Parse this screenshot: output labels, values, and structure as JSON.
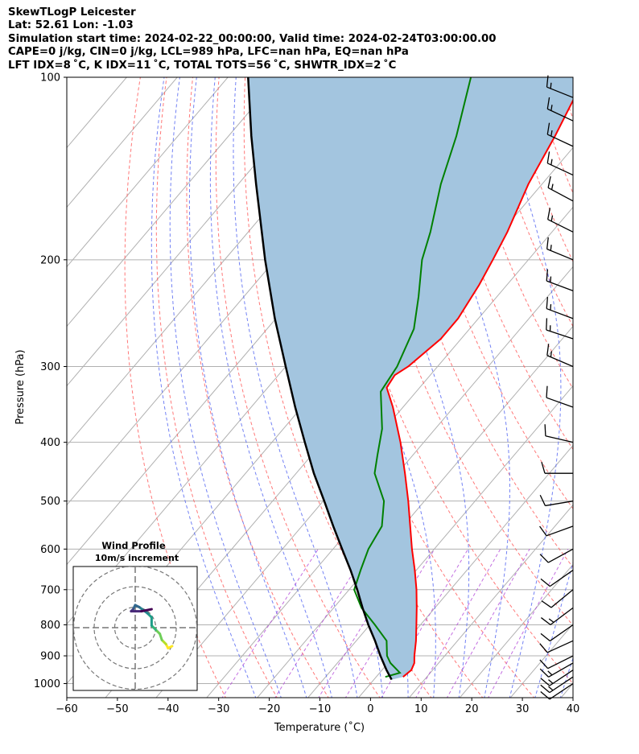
{
  "header": {
    "line1": "SkewTLogP Leicester",
    "line2": "Lat: 52.61   Lon: -1.03",
    "line3": "Simulation start time: 2024-02-22_00:00:00, Valid time: 2024-02-24T03:00:00.00",
    "line4": "CAPE=0 j/kg, CIN=0 j/kg, LCL=989 hPa, LFC=nan hPa, EQ=nan hPa",
    "line5": "LFT IDX=8 ˚C, K IDX=11 ˚C, TOTAL TOTS=56 ˚C, SHWTR_IDX=2 ˚C"
  },
  "colors": {
    "temperature": "#ff0000",
    "dewpoint": "#008000",
    "parcel": "#000000",
    "cape_fill": "#a3c5df",
    "dry_adiabat": "#ff6060",
    "moist_adiabat": "#5a6cf2",
    "mixing_ratio": "#b44bd9",
    "isotherm": "#b0b0b0",
    "grid": "#b0b0b0"
  },
  "chart_data": {
    "type": "skewt-logp",
    "xlabel": "Temperature (˚C)",
    "ylabel": "Pressure (hPa)",
    "xlim": [
      -60,
      40
    ],
    "ylim": [
      1050,
      100
    ],
    "x_ticks": [
      "−60",
      "−50",
      "−40",
      "−30",
      "−20",
      "−10",
      "0",
      "10",
      "20",
      "30",
      "40"
    ],
    "x_tick_values": [
      -60,
      -50,
      -40,
      -30,
      -20,
      -10,
      0,
      10,
      20,
      30,
      40
    ],
    "y_ticks": [
      "1000",
      "900",
      "800",
      "700",
      "600",
      "500",
      "400",
      "300",
      "200",
      "100"
    ],
    "y_tick_values": [
      1000,
      900,
      800,
      700,
      600,
      500,
      400,
      300,
      200,
      100
    ],
    "grid": true,
    "temperature_profile": [
      {
        "p": 975,
        "t": 5.3
      },
      {
        "p": 950,
        "t": 5.8
      },
      {
        "p": 925,
        "t": 5.2
      },
      {
        "p": 900,
        "t": 4.0
      },
      {
        "p": 850,
        "t": 1.8
      },
      {
        "p": 800,
        "t": -0.8
      },
      {
        "p": 750,
        "t": -3.6
      },
      {
        "p": 700,
        "t": -6.7
      },
      {
        "p": 650,
        "t": -10.3
      },
      {
        "p": 600,
        "t": -14.4
      },
      {
        "p": 550,
        "t": -18.6
      },
      {
        "p": 500,
        "t": -23.2
      },
      {
        "p": 450,
        "t": -28.5
      },
      {
        "p": 400,
        "t": -34.6
      },
      {
        "p": 350,
        "t": -42.0
      },
      {
        "p": 325,
        "t": -46.5
      },
      {
        "p": 310,
        "t": -47.0
      },
      {
        "p": 300,
        "t": -45.8
      },
      {
        "p": 270,
        "t": -44.0
      },
      {
        "p": 250,
        "t": -44.0
      },
      {
        "p": 220,
        "t": -45.5
      },
      {
        "p": 200,
        "t": -47.0
      },
      {
        "p": 180,
        "t": -48.8
      },
      {
        "p": 150,
        "t": -52.7
      },
      {
        "p": 125,
        "t": -55.5
      },
      {
        "p": 100,
        "t": -59.5
      }
    ],
    "dewpoint_profile": [
      {
        "p": 975,
        "t": 1.8
      },
      {
        "p": 960,
        "t": 4.0
      },
      {
        "p": 925,
        "t": 0.5
      },
      {
        "p": 900,
        "t": -1.4
      },
      {
        "p": 850,
        "t": -4.0
      },
      {
        "p": 800,
        "t": -9.0
      },
      {
        "p": 750,
        "t": -14.5
      },
      {
        "p": 700,
        "t": -19.0
      },
      {
        "p": 650,
        "t": -21.0
      },
      {
        "p": 600,
        "t": -23.0
      },
      {
        "p": 550,
        "t": -24.2
      },
      {
        "p": 500,
        "t": -28.0
      },
      {
        "p": 450,
        "t": -34.5
      },
      {
        "p": 420,
        "t": -37.0
      },
      {
        "p": 380,
        "t": -40.5
      },
      {
        "p": 330,
        "t": -47.0
      },
      {
        "p": 300,
        "t": -48.0
      },
      {
        "p": 260,
        "t": -51.0
      },
      {
        "p": 230,
        "t": -55.5
      },
      {
        "p": 200,
        "t": -61.0
      },
      {
        "p": 180,
        "t": -64.0
      },
      {
        "p": 150,
        "t": -70.0
      },
      {
        "p": 125,
        "t": -75.0
      },
      {
        "p": 100,
        "t": -82.0
      }
    ],
    "parcel_profile": [
      {
        "p": 985,
        "t": 3.5
      },
      {
        "p": 950,
        "t": 0.9
      },
      {
        "p": 900,
        "t": -2.7
      },
      {
        "p": 850,
        "t": -6.3
      },
      {
        "p": 800,
        "t": -10.3
      },
      {
        "p": 750,
        "t": -14.3
      },
      {
        "p": 700,
        "t": -18.4
      },
      {
        "p": 650,
        "t": -23.0
      },
      {
        "p": 600,
        "t": -28.2
      },
      {
        "p": 550,
        "t": -33.8
      },
      {
        "p": 500,
        "t": -39.8
      },
      {
        "p": 450,
        "t": -46.5
      },
      {
        "p": 400,
        "t": -53.5
      },
      {
        "p": 350,
        "t": -61.3
      },
      {
        "p": 300,
        "t": -70.0
      },
      {
        "p": 250,
        "t": -80.2
      },
      {
        "p": 200,
        "t": -92.0
      },
      {
        "p": 150,
        "t": -106.5
      },
      {
        "p": 125,
        "t": -115.5
      },
      {
        "p": 100,
        "t": -126.0
      }
    ],
    "wind_barbs": [
      {
        "p": 1000,
        "u": 12,
        "v": 8
      },
      {
        "p": 975,
        "u": 15,
        "v": 10
      },
      {
        "p": 950,
        "u": 15,
        "v": 10
      },
      {
        "p": 925,
        "u": 14,
        "v": 8
      },
      {
        "p": 900,
        "u": 12,
        "v": 6
      },
      {
        "p": 850,
        "u": 11,
        "v": 5
      },
      {
        "p": 800,
        "u": 10,
        "v": 7
      },
      {
        "p": 750,
        "u": 12,
        "v": 9
      },
      {
        "p": 700,
        "u": 11,
        "v": 9
      },
      {
        "p": 650,
        "u": 10,
        "v": 7
      },
      {
        "p": 600,
        "u": 11,
        "v": 6
      },
      {
        "p": 550,
        "u": 11,
        "v": 4
      },
      {
        "p": 500,
        "u": 12,
        "v": 2
      },
      {
        "p": 450,
        "u": 12,
        "v": 0
      },
      {
        "p": 400,
        "u": 13,
        "v": -3
      },
      {
        "p": 350,
        "u": 14,
        "v": -5
      },
      {
        "p": 300,
        "u": 14,
        "v": -6
      },
      {
        "p": 270,
        "u": 15,
        "v": -5
      },
      {
        "p": 250,
        "u": 16,
        "v": -6
      },
      {
        "p": 225,
        "u": 16,
        "v": -6
      },
      {
        "p": 200,
        "u": 17,
        "v": -7
      },
      {
        "p": 180,
        "u": 16,
        "v": -8
      },
      {
        "p": 160,
        "u": 15,
        "v": -8
      },
      {
        "p": 145,
        "u": 15,
        "v": -7
      },
      {
        "p": 130,
        "u": 15,
        "v": -7
      },
      {
        "p": 118,
        "u": 15,
        "v": -7
      },
      {
        "p": 108,
        "u": 15,
        "v": -6
      }
    ],
    "hodograph": {
      "title": "Wind Profile",
      "subtitle": "10m/s increment",
      "rings_ms": [
        10,
        20,
        30
      ],
      "points": [
        {
          "u": 18,
          "v": -9
        },
        {
          "u": 16,
          "v": -10
        },
        {
          "u": 15,
          "v": -8
        },
        {
          "u": 13,
          "v": -6
        },
        {
          "u": 12,
          "v": -3
        },
        {
          "u": 10,
          "v": -1
        },
        {
          "u": 8,
          "v": 1
        },
        {
          "u": 8,
          "v": 5
        },
        {
          "u": 6,
          "v": 7
        },
        {
          "u": 2,
          "v": 10
        },
        {
          "u": 0,
          "v": 11
        },
        {
          "u": -1,
          "v": 9
        },
        {
          "u": -2,
          "v": 8
        },
        {
          "u": 0,
          "v": 8
        },
        {
          "u": 3,
          "v": 8
        },
        {
          "u": 8,
          "v": 9
        }
      ]
    }
  }
}
